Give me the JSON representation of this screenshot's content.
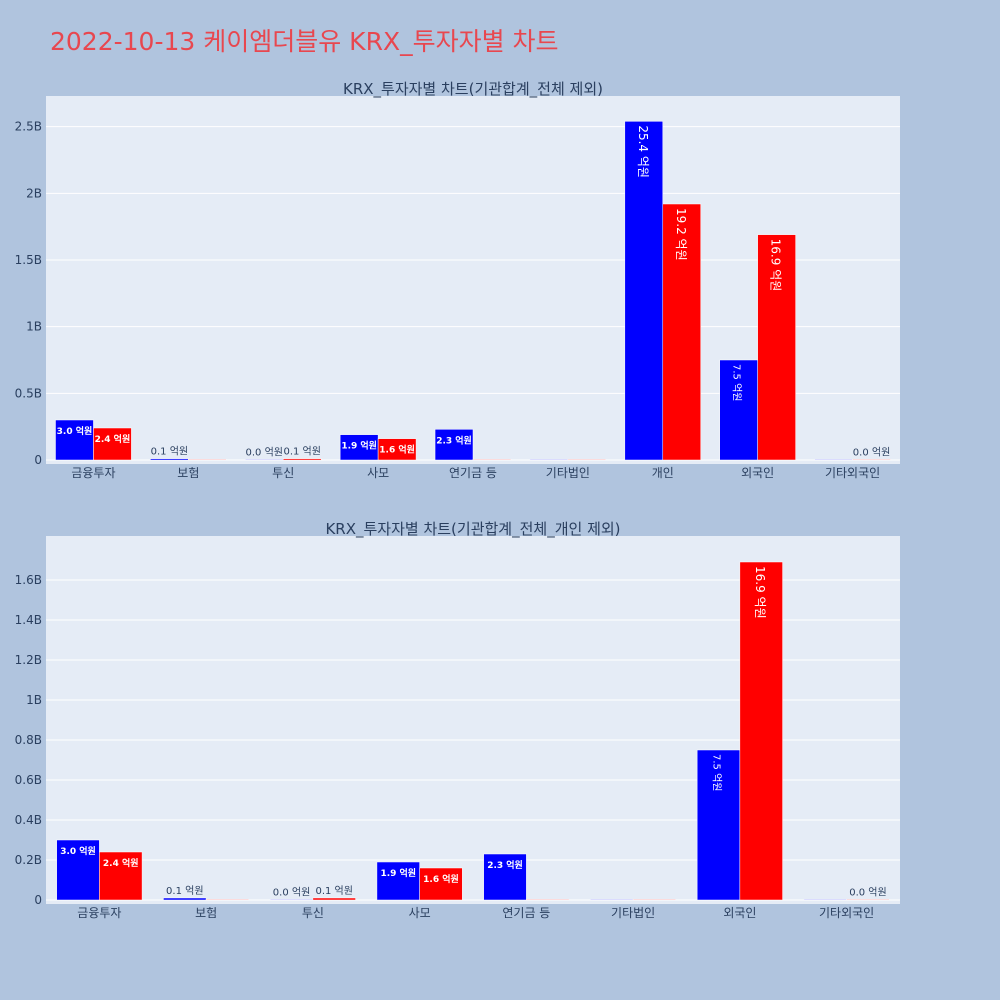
{
  "title": "2022-10-13 케이엠더블유 KRX_투자자별 차트",
  "colors": {
    "series1": "#0000ff",
    "series2": "#ff0000",
    "background": "#b0c4de",
    "plot_bg": "#e5ecf6"
  },
  "chart_data": [
    {
      "type": "bar",
      "title": "KRX_투자자별 차트(기관합계_전체 제외)",
      "categories": [
        "금융투자",
        "보험",
        "투신",
        "사모",
        "연기금 등",
        "기타법인",
        "개인",
        "외국인",
        "기타외국인"
      ],
      "ylim": [
        0,
        2.7
      ],
      "yticks": [
        {
          "value": 0,
          "label": "0"
        },
        {
          "value": 0.5,
          "label": "0.5B"
        },
        {
          "value": 1,
          "label": "1B"
        },
        {
          "value": 1.5,
          "label": "1.5B"
        },
        {
          "value": 2,
          "label": "2B"
        },
        {
          "value": 2.5,
          "label": "2.5B"
        }
      ],
      "grid": true,
      "series": [
        {
          "values": [
            0.3,
            0.01,
            0.0,
            0.19,
            0.23,
            0.0,
            2.54,
            0.75,
            0.0
          ],
          "labels": [
            "3.0 억원",
            "0.1 억원",
            "0.0 억원",
            "1.9 억원",
            "2.3 억원",
            "",
            "25.4 억원",
            "7.5 억원",
            ""
          ]
        },
        {
          "values": [
            0.24,
            0.0,
            0.01,
            0.16,
            0.0,
            0.0,
            1.92,
            1.69,
            0.0
          ],
          "labels": [
            "2.4 억원",
            "",
            "0.1 억원",
            "1.6 억원",
            "",
            "",
            "19.2 억원",
            "16.9 억원",
            "0.0 억원"
          ]
        }
      ]
    },
    {
      "type": "bar",
      "title": "KRX_투자자별 차트(기관합계_전체_개인 제외)",
      "categories": [
        "금융투자",
        "보험",
        "투신",
        "사모",
        "연기금 등",
        "기타법인",
        "외국인",
        "기타외국인"
      ],
      "ylim": [
        0,
        1.8
      ],
      "yticks": [
        {
          "value": 0,
          "label": "0"
        },
        {
          "value": 0.2,
          "label": "0.2B"
        },
        {
          "value": 0.4,
          "label": "0.4B"
        },
        {
          "value": 0.6,
          "label": "0.6B"
        },
        {
          "value": 0.8,
          "label": "0.8B"
        },
        {
          "value": 1.0,
          "label": "1B"
        },
        {
          "value": 1.2,
          "label": "1.2B"
        },
        {
          "value": 1.4,
          "label": "1.4B"
        },
        {
          "value": 1.6,
          "label": "1.6B"
        }
      ],
      "grid": true,
      "series": [
        {
          "values": [
            0.3,
            0.01,
            0.0,
            0.19,
            0.23,
            0.0,
            0.75,
            0.0
          ],
          "labels": [
            "3.0 억원",
            "0.1 억원",
            "0.0 억원",
            "1.9 억원",
            "2.3 억원",
            "",
            "7.5 억원",
            ""
          ]
        },
        {
          "values": [
            0.24,
            0.0,
            0.01,
            0.16,
            0.0,
            0.0,
            1.69,
            0.0
          ],
          "labels": [
            "2.4 억원",
            "",
            "0.1 억원",
            "1.6 억원",
            "",
            "",
            "16.9 억원",
            "0.0 억원"
          ]
        }
      ]
    }
  ]
}
